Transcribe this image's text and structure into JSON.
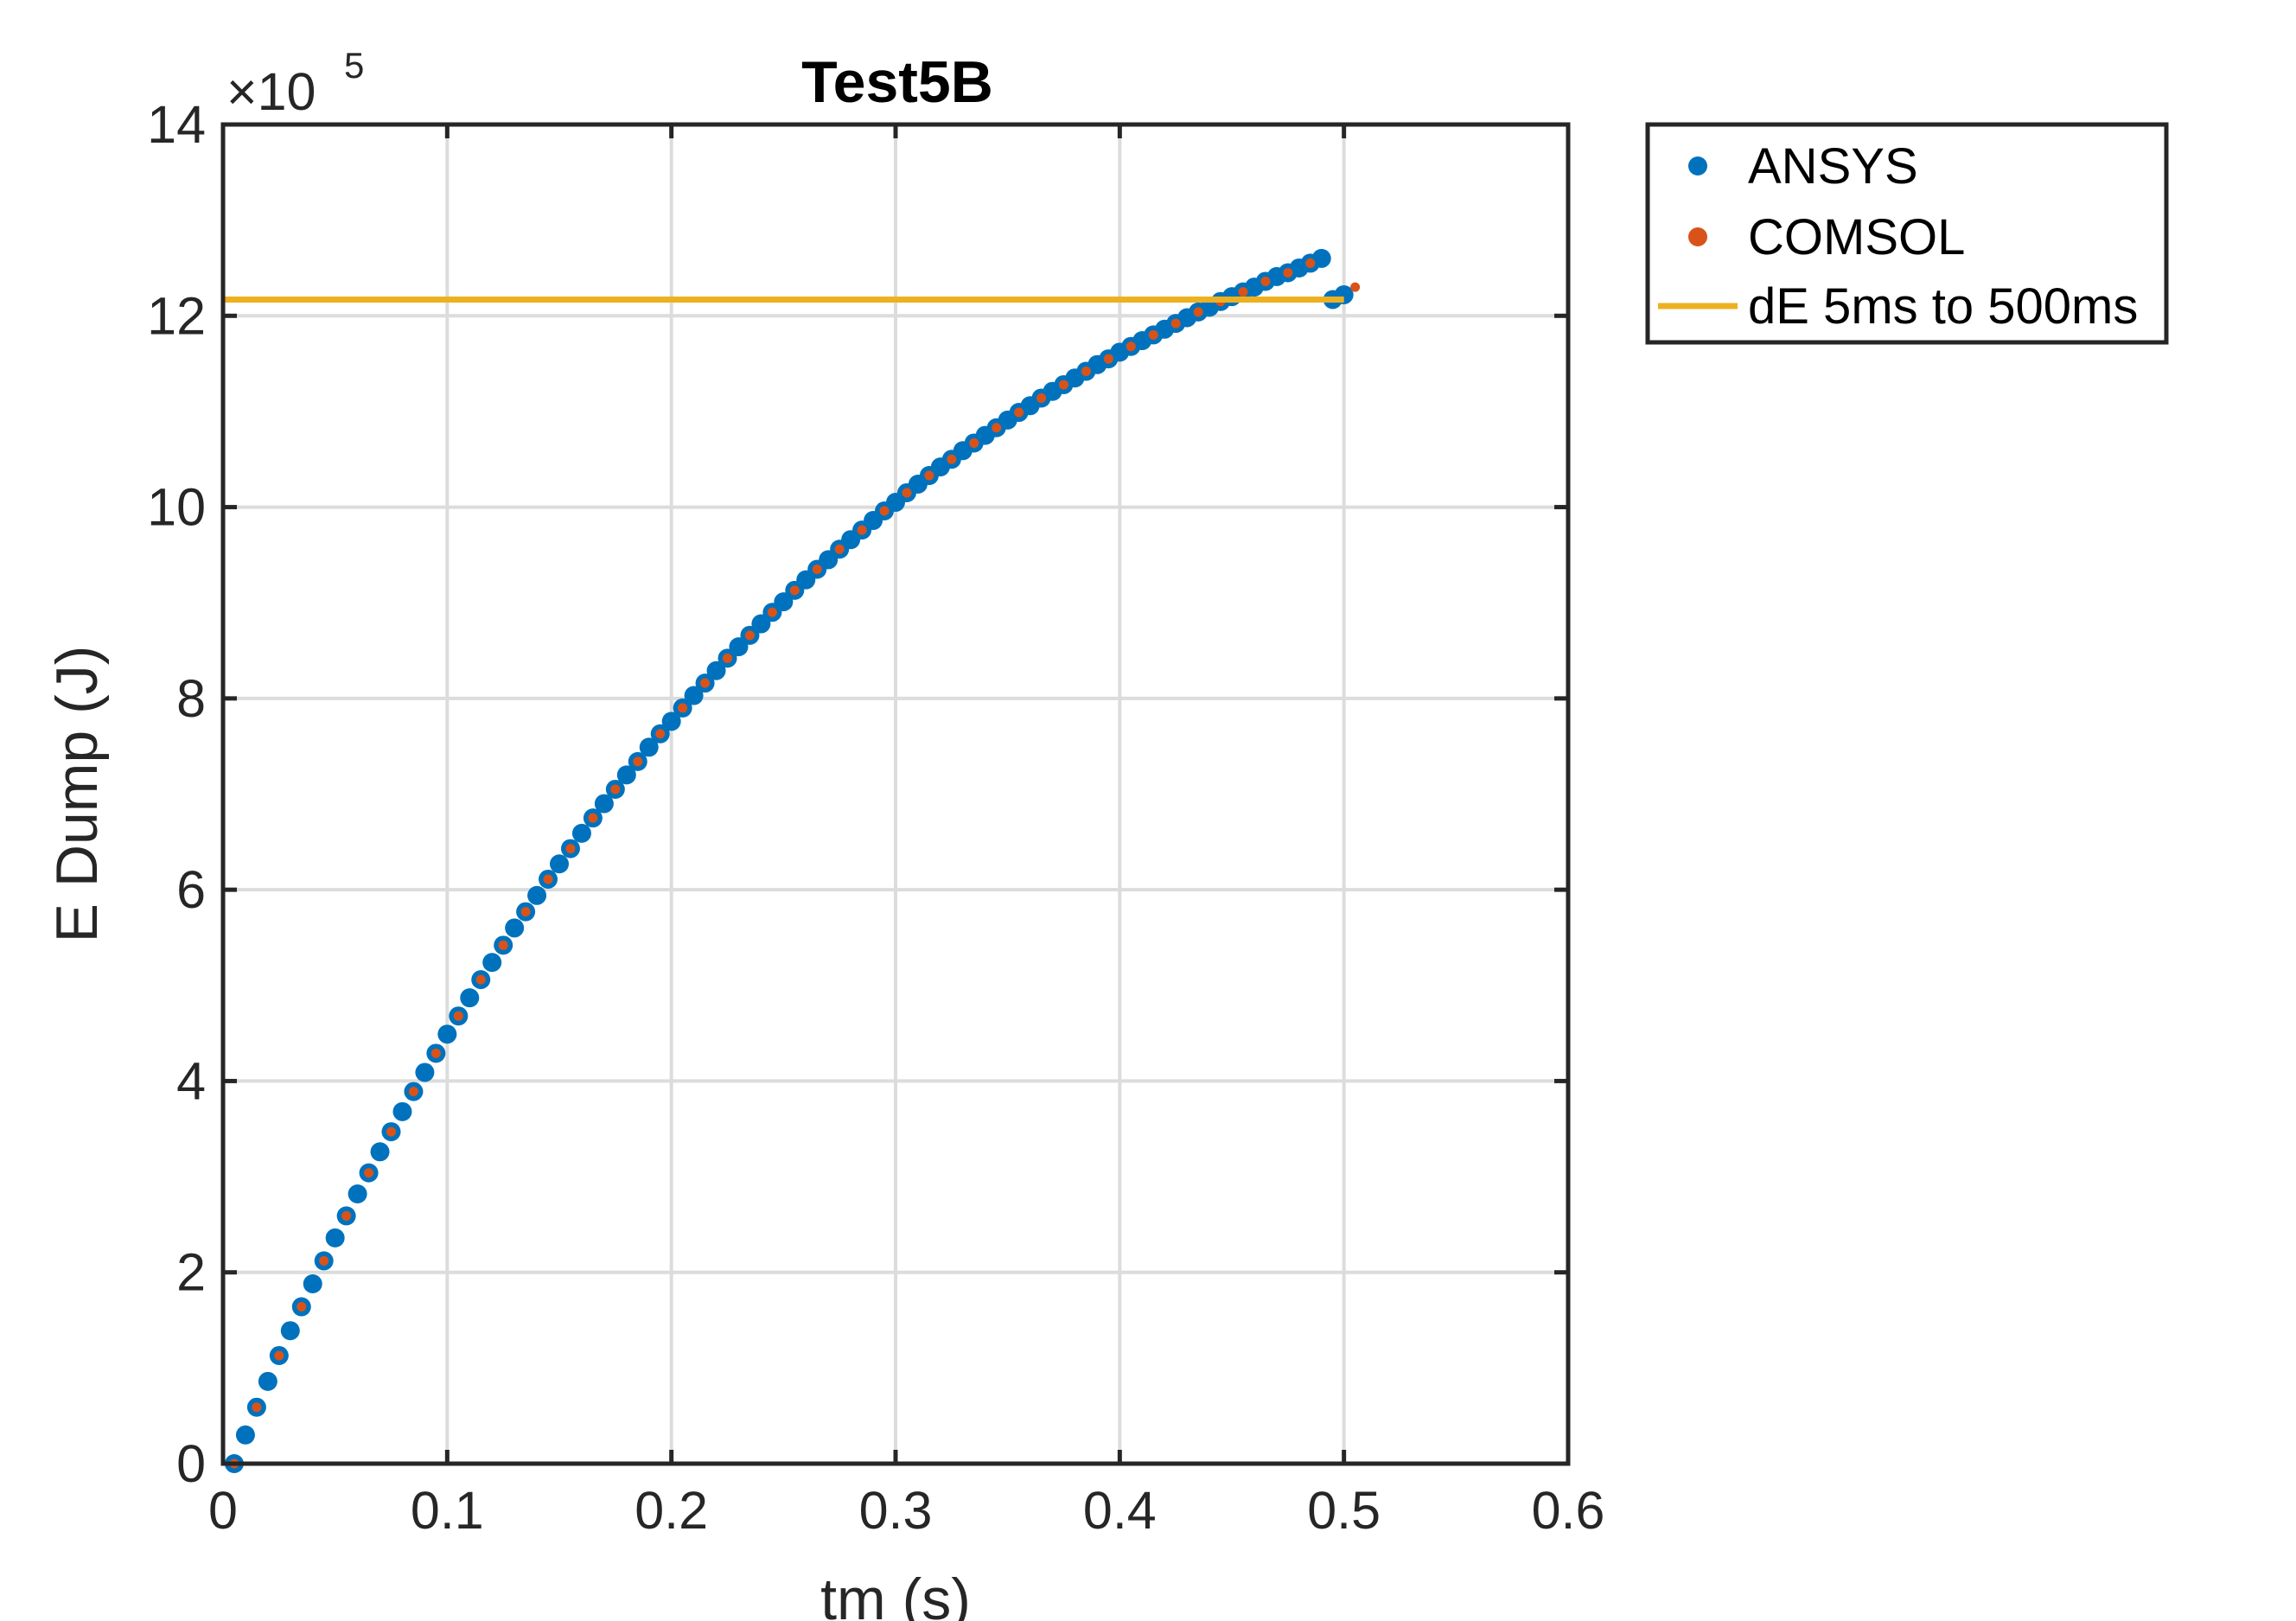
{
  "chart_data": {
    "type": "scatter",
    "title": "Test5B",
    "xlabel": "tm (s)",
    "ylabel": "E Dump (J)",
    "xlim": [
      0,
      0.6
    ],
    "ylim": [
      0,
      1400000
    ],
    "xticks": [
      0,
      0.1,
      0.2,
      0.3,
      0.4,
      0.5,
      0.6
    ],
    "xtick_labels": [
      "0",
      "0.1",
      "0.2",
      "0.3",
      "0.4",
      "0.5",
      "0.6"
    ],
    "yticks": [
      0,
      200000,
      400000,
      600000,
      800000,
      1000000,
      1200000,
      1400000
    ],
    "ytick_labels": [
      "0",
      "2",
      "4",
      "6",
      "8",
      "10",
      "12",
      "14"
    ],
    "y_exponent": {
      "base": "×10",
      "power": "5"
    },
    "grid": true,
    "legend_position": "outside-top-right",
    "series": [
      {
        "name": "ANSYS",
        "marker": "dot",
        "color": "#0072BD",
        "x": [
          0.005,
          0.01,
          0.015,
          0.02,
          0.025,
          0.03,
          0.035,
          0.04,
          0.045,
          0.05,
          0.055,
          0.06,
          0.065,
          0.07,
          0.075,
          0.08,
          0.085,
          0.09,
          0.095,
          0.1,
          0.105,
          0.11,
          0.115,
          0.12,
          0.125,
          0.13,
          0.135,
          0.14,
          0.145,
          0.15,
          0.155,
          0.16,
          0.165,
          0.17,
          0.175,
          0.18,
          0.185,
          0.19,
          0.195,
          0.2,
          0.205,
          0.21,
          0.215,
          0.22,
          0.225,
          0.23,
          0.235,
          0.24,
          0.245,
          0.25,
          0.255,
          0.26,
          0.265,
          0.27,
          0.275,
          0.28,
          0.285,
          0.29,
          0.295,
          0.3,
          0.305,
          0.31,
          0.315,
          0.32,
          0.325,
          0.33,
          0.335,
          0.34,
          0.345,
          0.35,
          0.355,
          0.36,
          0.365,
          0.37,
          0.375,
          0.38,
          0.385,
          0.39,
          0.395,
          0.4,
          0.405,
          0.41,
          0.415,
          0.42,
          0.425,
          0.43,
          0.435,
          0.44,
          0.445,
          0.45,
          0.455,
          0.46,
          0.465,
          0.47,
          0.475,
          0.48,
          0.485,
          0.49,
          0.495,
          0.5
        ],
        "y": [
          0,
          30000,
          59000,
          86000,
          113000,
          139000,
          164000,
          188000,
          212000,
          236000,
          259000,
          282000,
          304000,
          326000,
          347000,
          368000,
          389000,
          409000,
          429000,
          449000,
          468000,
          487000,
          506000,
          524000,
          542000,
          560000,
          577000,
          594000,
          611000,
          627000,
          643000,
          659000,
          675000,
          690000,
          705000,
          720000,
          734000,
          749000,
          763000,
          776000,
          790000,
          803000,
          816000,
          829000,
          842000,
          854000,
          866000,
          878000,
          890000,
          901000,
          913000,
          924000,
          935000,
          945000,
          956000,
          966000,
          976000,
          986000,
          996000,
          1005000,
          1015000,
          1024000,
          1033000,
          1042000,
          1050000,
          1059000,
          1067000,
          1075000,
          1083000,
          1091000,
          1099000,
          1106000,
          1114000,
          1121000,
          1128000,
          1135000,
          1142000,
          1149000,
          1155000,
          1162000,
          1168000,
          1174000,
          1180000,
          1186000,
          1192000,
          1198000,
          1204000,
          1209000,
          1215000,
          1220000,
          1225000,
          1230000,
          1236000,
          1241000,
          1245000,
          1250000,
          1255000,
          1260000,
          1217000,
          1222000
        ]
      },
      {
        "name": "COMSOL",
        "marker": "dot",
        "color": "#D95319",
        "x": [
          0.005,
          0.015,
          0.025,
          0.035,
          0.045,
          0.055,
          0.065,
          0.075,
          0.085,
          0.095,
          0.105,
          0.115,
          0.125,
          0.135,
          0.145,
          0.155,
          0.165,
          0.175,
          0.185,
          0.195,
          0.205,
          0.215,
          0.225,
          0.235,
          0.245,
          0.255,
          0.265,
          0.275,
          0.285,
          0.295,
          0.305,
          0.315,
          0.325,
          0.335,
          0.345,
          0.355,
          0.365,
          0.375,
          0.385,
          0.395,
          0.405,
          0.415,
          0.425,
          0.435,
          0.445,
          0.455,
          0.465,
          0.475,
          0.485,
          0.505
        ],
        "y": [
          0,
          59000,
          113000,
          164000,
          212000,
          259000,
          304000,
          347000,
          389000,
          429000,
          468000,
          506000,
          542000,
          577000,
          611000,
          643000,
          675000,
          705000,
          734000,
          763000,
          790000,
          816000,
          842000,
          866000,
          890000,
          913000,
          935000,
          956000,
          976000,
          996000,
          1015000,
          1033000,
          1050000,
          1067000,
          1083000,
          1099000,
          1114000,
          1128000,
          1142000,
          1155000,
          1168000,
          1180000,
          1192000,
          1204000,
          1215000,
          1225000,
          1236000,
          1245000,
          1255000,
          1230000
        ]
      },
      {
        "name": "dE 5ms to 500ms",
        "marker": "line",
        "color": "#EDB120",
        "x": [
          0,
          0.5
        ],
        "y": [
          1217000,
          1217000
        ]
      }
    ]
  },
  "colors": {
    "axis": "#262626",
    "grid": "#dcdcdc",
    "background": "#ffffff"
  }
}
